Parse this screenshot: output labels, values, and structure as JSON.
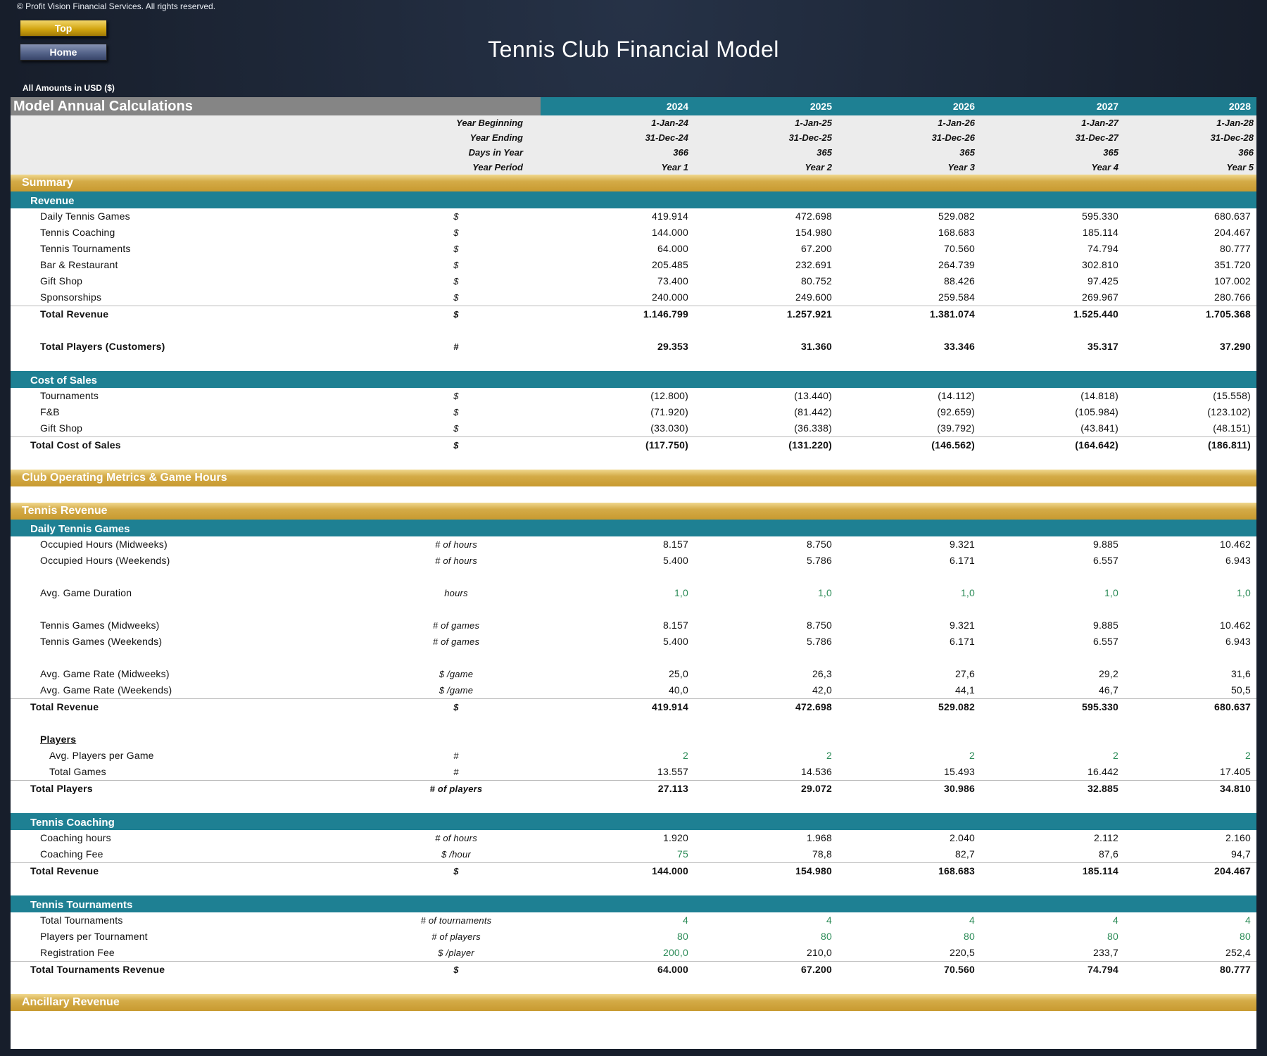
{
  "header": {
    "copyright": "© Profit Vision Financial Services. All rights reserved.",
    "top_label": "Top",
    "home_label": "Home",
    "title": "Tennis Club Financial Model",
    "amounts_note": "All Amounts in  USD ($)"
  },
  "table": {
    "title": "Model Annual Calculations",
    "years": [
      "2024",
      "2025",
      "2026",
      "2027",
      "2028"
    ],
    "meta": [
      {
        "label": "Year Beginning",
        "v": [
          "1-Jan-24",
          "1-Jan-25",
          "1-Jan-26",
          "1-Jan-27",
          "1-Jan-28"
        ]
      },
      {
        "label": "Year Ending",
        "v": [
          "31-Dec-24",
          "31-Dec-25",
          "31-Dec-26",
          "31-Dec-27",
          "31-Dec-28"
        ]
      },
      {
        "label": "Days in Year",
        "v": [
          "366",
          "365",
          "365",
          "365",
          "366"
        ]
      },
      {
        "label": "Year Period",
        "v": [
          "Year 1",
          "Year 2",
          "Year 3",
          "Year 4",
          "Year 5"
        ]
      }
    ]
  },
  "summary": {
    "section": "Summary",
    "revenue_header": "Revenue",
    "revenue_rows": [
      {
        "label": "Daily Tennis Games",
        "unit": "$",
        "v": [
          "419.914",
          "472.698",
          "529.082",
          "595.330",
          "680.637"
        ]
      },
      {
        "label": "Tennis Coaching",
        "unit": "$",
        "v": [
          "144.000",
          "154.980",
          "168.683",
          "185.114",
          "204.467"
        ]
      },
      {
        "label": "Tennis Tournaments",
        "unit": "$",
        "v": [
          "64.000",
          "67.200",
          "70.560",
          "74.794",
          "80.777"
        ]
      },
      {
        "label": "Bar & Restaurant",
        "unit": "$",
        "v": [
          "205.485",
          "232.691",
          "264.739",
          "302.810",
          "351.720"
        ]
      },
      {
        "label": "Gift Shop",
        "unit": "$",
        "v": [
          "73.400",
          "80.752",
          "88.426",
          "97.425",
          "107.002"
        ]
      },
      {
        "label": "Sponsorships",
        "unit": "$",
        "v": [
          "240.000",
          "249.600",
          "259.584",
          "269.967",
          "280.766"
        ]
      }
    ],
    "total_revenue": {
      "label": "Total Revenue",
      "unit": "$",
      "v": [
        "1.146.799",
        "1.257.921",
        "1.381.074",
        "1.525.440",
        "1.705.368"
      ]
    },
    "total_players": {
      "label": "Total Players (Customers)",
      "unit": "#",
      "v": [
        "29.353",
        "31.360",
        "33.346",
        "35.317",
        "37.290"
      ]
    },
    "cos_header": "Cost of Sales",
    "cos_rows": [
      {
        "label": "Tournaments",
        "unit": "$",
        "v": [
          "(12.800)",
          "(13.440)",
          "(14.112)",
          "(14.818)",
          "(15.558)"
        ]
      },
      {
        "label": "F&B",
        "unit": "$",
        "v": [
          "(71.920)",
          "(81.442)",
          "(92.659)",
          "(105.984)",
          "(123.102)"
        ]
      },
      {
        "label": "Gift Shop",
        "unit": "$",
        "v": [
          "(33.030)",
          "(36.338)",
          "(39.792)",
          "(43.841)",
          "(48.151)"
        ]
      }
    ],
    "total_cos": {
      "label": "Total Cost of Sales",
      "unit": "$",
      "v": [
        "(117.750)",
        "(131.220)",
        "(146.562)",
        "(164.642)",
        "(186.811)"
      ]
    }
  },
  "club_metrics": {
    "section": "Club Operating Metrics & Game Hours"
  },
  "tennis_revenue": {
    "section": "Tennis Revenue",
    "daily_header": "Daily Tennis Games",
    "occ_mid": {
      "label": "Occupied Hours (Midweeks)",
      "unit": "# of hours",
      "v": [
        "8.157",
        "8.750",
        "9.321",
        "9.885",
        "10.462"
      ]
    },
    "occ_wkd": {
      "label": "Occupied Hours (Weekends)",
      "unit": "# of hours",
      "v": [
        "5.400",
        "5.786",
        "6.171",
        "6.557",
        "6.943"
      ]
    },
    "duration": {
      "label": "Avg. Game Duration",
      "unit": "hours",
      "v": [
        "1,0",
        "1,0",
        "1,0",
        "1,0",
        "1,0"
      ]
    },
    "games_mid": {
      "label": "Tennis Games (Midweeks)",
      "unit": "# of games",
      "v": [
        "8.157",
        "8.750",
        "9.321",
        "9.885",
        "10.462"
      ]
    },
    "games_wkd": {
      "label": "Tennis Games (Weekends)",
      "unit": "# of games",
      "v": [
        "5.400",
        "5.786",
        "6.171",
        "6.557",
        "6.943"
      ]
    },
    "rate_mid": {
      "label": "Avg. Game Rate (Midweeks)",
      "unit": "$ /game",
      "v": [
        "25,0",
        "26,3",
        "27,6",
        "29,2",
        "31,6"
      ]
    },
    "rate_wkd": {
      "label": "Avg. Game Rate (Weekends)",
      "unit": "$ /game",
      "v": [
        "40,0",
        "42,0",
        "44,1",
        "46,7",
        "50,5"
      ]
    },
    "total_rev": {
      "label": "Total Revenue",
      "unit": "$",
      "v": [
        "419.914",
        "472.698",
        "529.082",
        "595.330",
        "680.637"
      ]
    },
    "players_label": "Players",
    "avg_players": {
      "label": "Avg. Players per Game",
      "unit": "#",
      "v": [
        "2",
        "2",
        "2",
        "2",
        "2"
      ]
    },
    "total_games": {
      "label": "Total Games",
      "unit": "#",
      "v": [
        "13.557",
        "14.536",
        "15.493",
        "16.442",
        "17.405"
      ]
    },
    "total_players": {
      "label": "Total Players",
      "unit": "# of players",
      "v": [
        "27.113",
        "29.072",
        "30.986",
        "32.885",
        "34.810"
      ]
    },
    "coaching_header": "Tennis Coaching",
    "coach_hours": {
      "label": "Coaching hours",
      "unit": "# of hours",
      "v": [
        "1.920",
        "1.968",
        "2.040",
        "2.112",
        "2.160"
      ]
    },
    "coach_fee": {
      "label": "Coaching Fee",
      "unit": "$ /hour",
      "v": [
        "75",
        "78,8",
        "82,7",
        "87,6",
        "94,7"
      ]
    },
    "coach_total": {
      "label": "Total Revenue",
      "unit": "$",
      "v": [
        "144.000",
        "154.980",
        "168.683",
        "185.114",
        "204.467"
      ]
    },
    "tourn_header": "Tennis Tournaments",
    "tourn_count": {
      "label": "Total Tournaments",
      "unit": "# of tournaments",
      "v": [
        "4",
        "4",
        "4",
        "4",
        "4"
      ]
    },
    "tourn_players": {
      "label": "Players per Tournament",
      "unit": "# of players",
      "v": [
        "80",
        "80",
        "80",
        "80",
        "80"
      ]
    },
    "reg_fee": {
      "label": "Registration Fee",
      "unit": "$ /player",
      "v": [
        "200,0",
        "210,0",
        "220,5",
        "233,7",
        "252,4"
      ]
    },
    "tourn_total": {
      "label": "Total Tournaments Revenue",
      "unit": "$",
      "v": [
        "64.000",
        "67.200",
        "70.560",
        "74.794",
        "80.777"
      ]
    }
  },
  "ancillary": {
    "section": "Ancillary Revenue"
  },
  "colors": {
    "teal": "#1e8093",
    "gold": "#d4ab47",
    "grey_header": "#858585",
    "input_green": "#2b8b57"
  }
}
